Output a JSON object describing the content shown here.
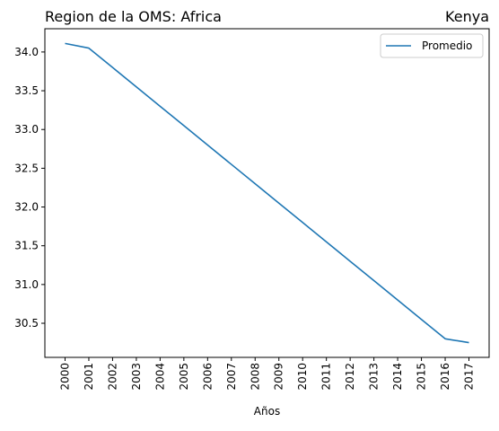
{
  "chart_data": {
    "type": "line",
    "title_left": "Region de la OMS: Africa",
    "title_right": "Kenya",
    "xlabel": "Años",
    "ylabel": "",
    "x": [
      "2000",
      "2001",
      "2002",
      "2003",
      "2004",
      "2005",
      "2006",
      "2007",
      "2008",
      "2009",
      "2010",
      "2011",
      "2012",
      "2013",
      "2014",
      "2015",
      "2016",
      "2017"
    ],
    "series": [
      {
        "name": "Promedio",
        "color": "#1f77b4",
        "values": [
          34.11,
          34.05,
          33.8,
          33.55,
          33.3,
          33.05,
          32.8,
          32.55,
          32.3,
          32.05,
          31.8,
          31.55,
          31.3,
          31.05,
          30.8,
          30.55,
          30.3,
          30.25
        ]
      }
    ],
    "yticks": [
      "30.5",
      "31.0",
      "31.5",
      "32.0",
      "32.5",
      "33.0",
      "33.5",
      "34.0"
    ],
    "ylim": [
      30.06,
      34.3
    ],
    "grid": false,
    "legend_position": "top-right"
  }
}
